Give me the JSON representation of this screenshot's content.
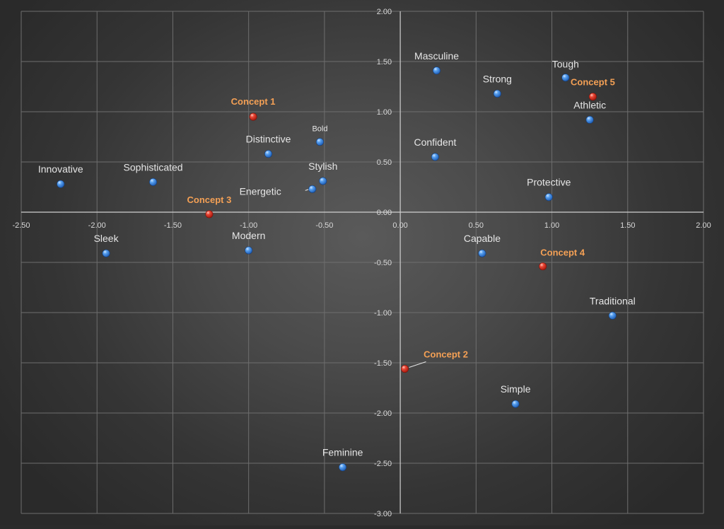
{
  "chart_data": {
    "type": "scatter",
    "title": "",
    "xlabel": "",
    "ylabel": "",
    "xlim": [
      -2.5,
      2.0
    ],
    "ylim": [
      -3.0,
      2.0
    ],
    "xticks": [
      "-2.50",
      "-2.00",
      "-1.50",
      "-1.00",
      "-0.50",
      "0.00",
      "0.50",
      "1.00",
      "1.50",
      "2.00"
    ],
    "yticks": [
      "2.00",
      "1.50",
      "1.00",
      "0.50",
      "0.00",
      "-0.50",
      "-1.00",
      "-1.50",
      "-2.00",
      "-2.50",
      "-3.00"
    ],
    "grid": true,
    "colors": {
      "attribute": "#3a86e0",
      "concept": "#d93a2b",
      "concept_label": "#f4a055",
      "label": "#e6e6e6",
      "grid": "#6e6e6e",
      "axis": "#d0d0d0"
    },
    "series": [
      {
        "points": [
          {
            "label": "Innovative",
            "x": -2.24,
            "y": 0.28
          },
          {
            "label": "Sophisticated",
            "x": -1.63,
            "y": 0.3
          },
          {
            "label": "Sleek",
            "x": -1.94,
            "y": -0.41
          },
          {
            "label": "Modern",
            "x": -1.0,
            "y": -0.38
          },
          {
            "label": "Distinctive",
            "x": -0.87,
            "y": 0.58
          },
          {
            "label": "Bold",
            "x": -0.53,
            "y": 0.7
          },
          {
            "label": "Stylish",
            "x": -0.51,
            "y": 0.31
          },
          {
            "label": "Energetic",
            "x": -0.58,
            "y": 0.23
          },
          {
            "label": "Masculine",
            "x": 0.24,
            "y": 1.41
          },
          {
            "label": "Strong",
            "x": 0.64,
            "y": 1.18
          },
          {
            "label": "Tough",
            "x": 1.09,
            "y": 1.34
          },
          {
            "label": "Athletic",
            "x": 1.25,
            "y": 0.92
          },
          {
            "label": "Confident",
            "x": 0.23,
            "y": 0.55
          },
          {
            "label": "Protective",
            "x": 0.98,
            "y": 0.15
          },
          {
            "label": "Capable",
            "x": 0.54,
            "y": -0.41
          },
          {
            "label": "Traditional",
            "x": 1.4,
            "y": -1.03
          },
          {
            "label": "Simple",
            "x": 0.76,
            "y": -1.91
          },
          {
            "label": "Feminine",
            "x": -0.38,
            "y": -2.54
          }
        ]
      },
      {
        "points": [
          {
            "label": "Concept 1",
            "x": -0.97,
            "y": 0.95
          },
          {
            "label": "Concept 2",
            "x": 0.03,
            "y": -1.56
          },
          {
            "label": "Concept 3",
            "x": -1.26,
            "y": -0.02
          },
          {
            "label": "Concept 4",
            "x": 0.94,
            "y": -0.54
          },
          {
            "label": "Concept 5",
            "x": 1.27,
            "y": 1.15
          }
        ]
      }
    ]
  }
}
